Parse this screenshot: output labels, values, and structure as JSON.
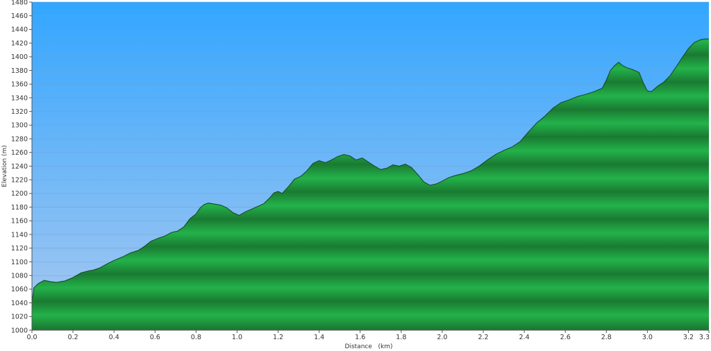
{
  "chart_data": {
    "type": "area",
    "xlabel": "Distance (km)",
    "ylabel": "Elevation (m)",
    "xlim": [
      0,
      3.3
    ],
    "ylim": [
      1000,
      1480
    ],
    "x_ticks": [
      0.0,
      0.2,
      0.4,
      0.6,
      0.8,
      1.0,
      1.2,
      1.4,
      1.6,
      1.8,
      2.0,
      2.2,
      2.4,
      2.6,
      2.8,
      3.0,
      3.2,
      3.3
    ],
    "x_tick_labels": [
      "0.0",
      "0.2",
      "0.4",
      "0.6",
      "0.8",
      "1.0",
      "1.2",
      "1.4",
      "1.6",
      "1.8",
      "2.0",
      "2.2",
      "2.4",
      "2.6",
      "2.8",
      "3.0",
      "3.2",
      "3.3"
    ],
    "y_ticks": [
      1000,
      1020,
      1040,
      1060,
      1080,
      1100,
      1120,
      1140,
      1160,
      1180,
      1200,
      1220,
      1240,
      1260,
      1280,
      1300,
      1320,
      1340,
      1360,
      1380,
      1400,
      1420,
      1440,
      1460,
      1480
    ],
    "grid": "horizontal",
    "series": [
      {
        "x": [
          0.0,
          0.01,
          0.03,
          0.06,
          0.09,
          0.12,
          0.16,
          0.2,
          0.24,
          0.28,
          0.3,
          0.33,
          0.36,
          0.4,
          0.44,
          0.48,
          0.52,
          0.55,
          0.58,
          0.62,
          0.65,
          0.68,
          0.71,
          0.74,
          0.77,
          0.8,
          0.82,
          0.84,
          0.86,
          0.88,
          0.92,
          0.95,
          0.98,
          1.01,
          1.04,
          1.07,
          1.1,
          1.13,
          1.16,
          1.18,
          1.2,
          1.22,
          1.25,
          1.28,
          1.31,
          1.34,
          1.37,
          1.4,
          1.43,
          1.46,
          1.49,
          1.52,
          1.55,
          1.58,
          1.61,
          1.64,
          1.67,
          1.7,
          1.73,
          1.76,
          1.79,
          1.82,
          1.85,
          1.88,
          1.91,
          1.94,
          1.97,
          2.0,
          2.03,
          2.06,
          2.1,
          2.14,
          2.18,
          2.22,
          2.26,
          2.3,
          2.34,
          2.38,
          2.42,
          2.46,
          2.5,
          2.54,
          2.58,
          2.62,
          2.66,
          2.7,
          2.74,
          2.78,
          2.8,
          2.82,
          2.84,
          2.86,
          2.88,
          2.9,
          2.93,
          2.96,
          2.98,
          3.0,
          3.02,
          3.05,
          3.08,
          3.11,
          3.14,
          3.17,
          3.2,
          3.23,
          3.26,
          3.28,
          3.3
        ],
        "y": [
          1041,
          1062,
          1068,
          1073,
          1071,
          1070,
          1072,
          1077,
          1084,
          1087,
          1088,
          1091,
          1096,
          1102,
          1107,
          1113,
          1117,
          1123,
          1130,
          1135,
          1138,
          1143,
          1145,
          1151,
          1163,
          1170,
          1179,
          1184,
          1186,
          1185,
          1183,
          1179,
          1172,
          1168,
          1173,
          1177,
          1181,
          1185,
          1194,
          1201,
          1203,
          1200,
          1210,
          1221,
          1225,
          1233,
          1244,
          1248,
          1245,
          1249,
          1254,
          1257,
          1255,
          1249,
          1252,
          1246,
          1240,
          1235,
          1237,
          1242,
          1240,
          1243,
          1238,
          1228,
          1217,
          1212,
          1214,
          1218,
          1223,
          1226,
          1229,
          1233,
          1240,
          1249,
          1257,
          1263,
          1268,
          1276,
          1290,
          1303,
          1313,
          1325,
          1333,
          1337,
          1342,
          1345,
          1349,
          1354,
          1366,
          1380,
          1387,
          1392,
          1387,
          1384,
          1381,
          1377,
          1362,
          1350,
          1349,
          1357,
          1363,
          1372,
          1385,
          1399,
          1412,
          1421,
          1425,
          1426,
          1426
        ]
      }
    ]
  }
}
